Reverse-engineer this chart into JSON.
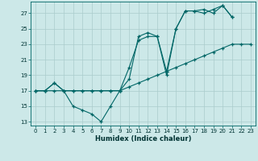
{
  "xlabel": "Humidex (Indice chaleur)",
  "bg_color": "#cce8e8",
  "grid_color": "#aacccc",
  "line_color": "#006666",
  "xlim": [
    -0.5,
    23.5
  ],
  "ylim": [
    12.5,
    28.5
  ],
  "xticks": [
    0,
    1,
    2,
    3,
    4,
    5,
    6,
    7,
    8,
    9,
    10,
    11,
    12,
    13,
    14,
    15,
    16,
    17,
    18,
    19,
    20,
    21,
    22,
    23
  ],
  "yticks": [
    13,
    15,
    17,
    19,
    21,
    23,
    25,
    27
  ],
  "line1_x": [
    0,
    1,
    2,
    3,
    4,
    5,
    6,
    7,
    8,
    9,
    10,
    11,
    12,
    13,
    14,
    15,
    16,
    17,
    18,
    19,
    20,
    21
  ],
  "line1_y": [
    17,
    17,
    18,
    17,
    15,
    14.5,
    14,
    13,
    15,
    17,
    20,
    23.5,
    24,
    24,
    19,
    25,
    27.3,
    27.3,
    27.5,
    27,
    28,
    26.5
  ],
  "line2_x": [
    0,
    1,
    2,
    3,
    4,
    5,
    6,
    7,
    8,
    9,
    10,
    11,
    12,
    13,
    14,
    15,
    16,
    17,
    18,
    19,
    20,
    21
  ],
  "line2_y": [
    17,
    17,
    18,
    17,
    17,
    17,
    17,
    17,
    17,
    17,
    18.5,
    24,
    24.5,
    24,
    19.5,
    25,
    27.3,
    27.3,
    27,
    27.5,
    28,
    26.5
  ],
  "line3_x": [
    0,
    1,
    2,
    3,
    4,
    5,
    6,
    7,
    8,
    9,
    10,
    11,
    12,
    13,
    14,
    15,
    16,
    17,
    18,
    19,
    20,
    21,
    22,
    23
  ],
  "line3_y": [
    17,
    17,
    17,
    17,
    17,
    17,
    17,
    17,
    17,
    17,
    17.5,
    18,
    18.5,
    19,
    19.5,
    20,
    20.5,
    21,
    21.5,
    22,
    22.5,
    23,
    23,
    23
  ]
}
